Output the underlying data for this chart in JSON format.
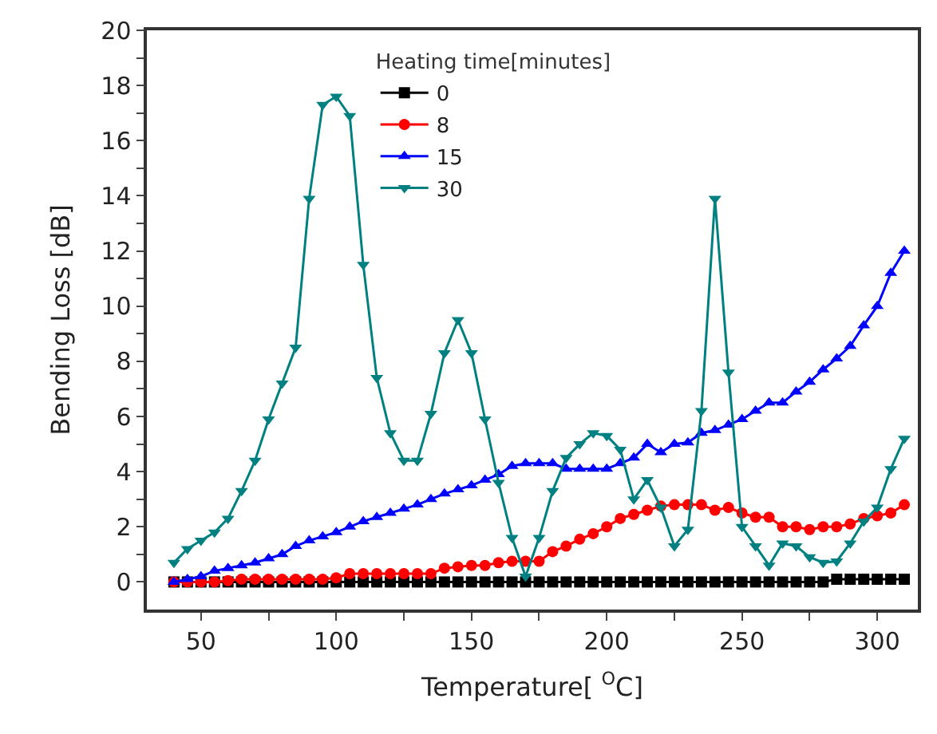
{
  "chart_data": {
    "type": "line",
    "xlabel": "Temperature[ $^{O}$C]",
    "ylabel": "Bending Loss [dB]",
    "legend_title": "Heating time[minutes]",
    "x": [
      40,
      45,
      50,
      55,
      60,
      65,
      70,
      75,
      80,
      85,
      90,
      95,
      100,
      105,
      110,
      115,
      120,
      125,
      130,
      135,
      140,
      145,
      150,
      155,
      160,
      165,
      170,
      175,
      180,
      185,
      190,
      195,
      200,
      205,
      210,
      215,
      220,
      225,
      230,
      235,
      240,
      245,
      250,
      255,
      260,
      265,
      270,
      275,
      280,
      285,
      290,
      295,
      300,
      305,
      310
    ],
    "series": [
      {
        "name": "0",
        "color": "#000000",
        "marker": "square",
        "values": [
          0,
          0,
          0,
          0,
          0,
          0,
          0,
          0,
          0,
          0,
          0,
          0,
          0,
          0,
          0,
          0,
          0,
          0,
          0,
          0,
          0,
          0,
          0,
          0,
          0,
          0,
          0,
          0,
          0,
          0,
          0,
          0,
          0,
          0,
          0,
          0,
          0,
          0,
          0,
          0,
          0,
          0,
          0,
          0,
          0,
          0,
          0,
          0,
          0,
          0.1,
          0.1,
          0.1,
          0.1,
          0.1,
          0.1
        ]
      },
      {
        "name": "8",
        "color": "#ff0000",
        "marker": "circle",
        "values": [
          0,
          0,
          0,
          0,
          0.05,
          0.1,
          0.1,
          0.1,
          0.1,
          0.1,
          0.1,
          0.1,
          0.15,
          0.3,
          0.3,
          0.3,
          0.3,
          0.3,
          0.3,
          0.3,
          0.5,
          0.55,
          0.6,
          0.6,
          0.7,
          0.75,
          0.75,
          0.75,
          1.1,
          1.3,
          1.55,
          1.75,
          2.0,
          2.3,
          2.45,
          2.6,
          2.75,
          2.8,
          2.8,
          2.8,
          2.6,
          2.7,
          2.5,
          2.35,
          2.35,
          2.0,
          2.0,
          1.9,
          2.0,
          2.0,
          2.1,
          2.3,
          2.4,
          2.5,
          2.8
        ]
      },
      {
        "name": "15",
        "color": "#0000ff",
        "marker": "triangle",
        "values": [
          0,
          0.1,
          0.2,
          0.4,
          0.5,
          0.6,
          0.7,
          0.85,
          1.0,
          1.3,
          1.5,
          1.65,
          1.8,
          2.0,
          2.2,
          2.35,
          2.5,
          2.65,
          2.8,
          3.0,
          3.2,
          3.35,
          3.5,
          3.7,
          3.9,
          4.2,
          4.3,
          4.3,
          4.3,
          4.1,
          4.1,
          4.1,
          4.1,
          4.3,
          4.5,
          5.0,
          4.7,
          5.0,
          5.05,
          5.4,
          5.5,
          5.7,
          5.9,
          6.2,
          6.5,
          6.5,
          6.9,
          7.25,
          7.7,
          8.1,
          8.55,
          9.3,
          10.0,
          11.2,
          12.0
        ]
      },
      {
        "name": "30",
        "color": "#008080",
        "marker": "triangle-down",
        "values": [
          0.7,
          1.2,
          1.5,
          1.8,
          2.3,
          3.3,
          4.4,
          5.9,
          7.2,
          8.5,
          13.9,
          17.3,
          17.6,
          16.9,
          11.5,
          7.4,
          5.4,
          4.4,
          4.4,
          6.1,
          8.3,
          9.5,
          8.3,
          5.9,
          3.6,
          1.6,
          0.2,
          1.6,
          3.3,
          4.5,
          5.0,
          5.4,
          5.3,
          4.8,
          3.0,
          3.7,
          2.7,
          1.3,
          1.9,
          6.2,
          13.9,
          7.6,
          2.0,
          1.3,
          0.6,
          1.4,
          1.3,
          0.9,
          0.7,
          0.75,
          1.4,
          2.2,
          2.7,
          4.1,
          5.2
        ]
      }
    ],
    "xlim": [
      30,
      315
    ],
    "xticks": [
      50,
      {
        "value": 75,
        "label": null
      },
      100,
      {
        "value": 125,
        "label": null
      },
      150,
      {
        "value": 175,
        "label": null
      },
      200,
      {
        "value": 225,
        "label": null
      },
      250,
      {
        "value": 275,
        "label": null
      },
      300
    ],
    "ylim": [
      -1,
      20
    ],
    "yticks": [
      0,
      {
        "value": 1,
        "label": null
      },
      2,
      {
        "value": 3,
        "label": null
      },
      4,
      {
        "value": 5,
        "label": null
      },
      6,
      {
        "value": 7,
        "label": null
      },
      8,
      {
        "value": 9,
        "label": null
      },
      10,
      {
        "value": 11,
        "label": null
      },
      12,
      {
        "value": 13,
        "label": null
      },
      14,
      {
        "value": 15,
        "label": null
      },
      16,
      {
        "value": 17,
        "label": null
      },
      18,
      {
        "value": 19,
        "label": null
      },
      20
    ],
    "legend": "top",
    "line_style": "solid"
  }
}
